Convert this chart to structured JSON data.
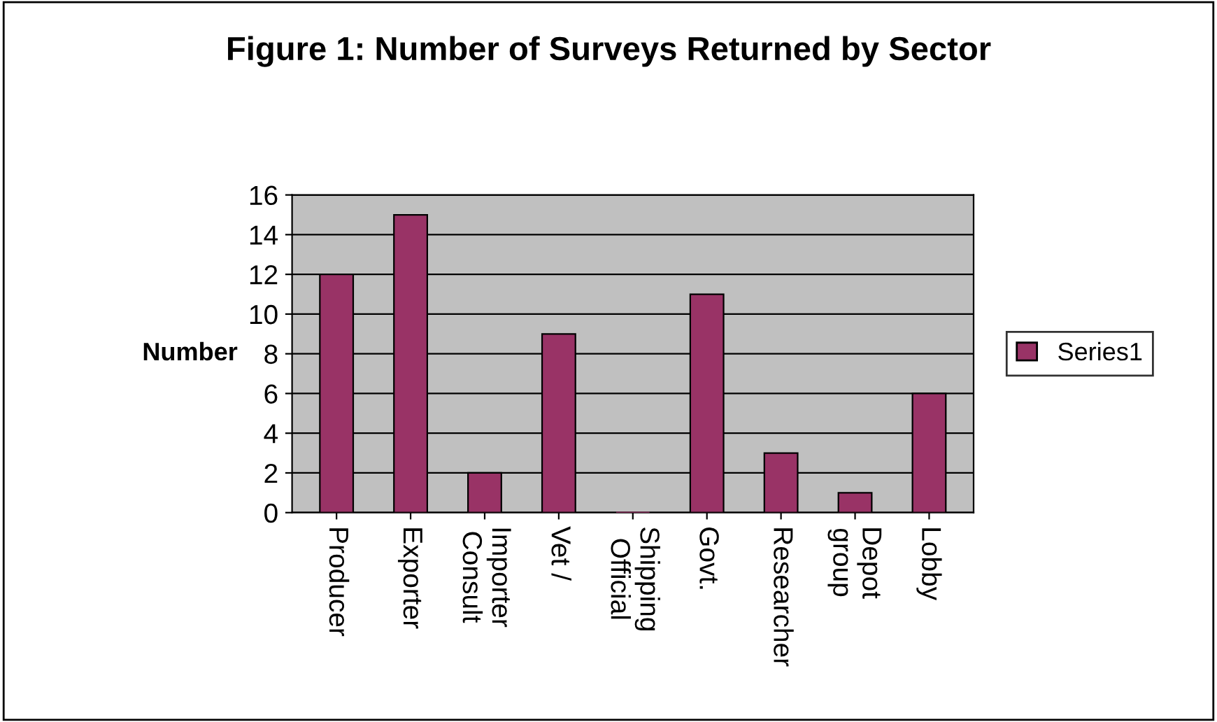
{
  "chart_data": {
    "type": "bar",
    "title": "Figure 1: Number of Surveys Returned by Sector",
    "ylabel": "Number",
    "categories": [
      "Producer",
      "Exporter",
      "Importer\nConsult",
      "Vet /",
      "Shipping\nOfficial",
      "Govt.",
      "Researcher",
      "Depot\ngroup",
      "Lobby"
    ],
    "series": [
      {
        "name": "Series1",
        "color": "#993366",
        "values": [
          12,
          15,
          2,
          9,
          0,
          11,
          3,
          1,
          6
        ]
      }
    ],
    "ylim": [
      0,
      16
    ],
    "yticks": [
      0,
      2,
      4,
      6,
      8,
      10,
      12,
      14,
      16
    ],
    "grid": "y",
    "legend": "right"
  }
}
